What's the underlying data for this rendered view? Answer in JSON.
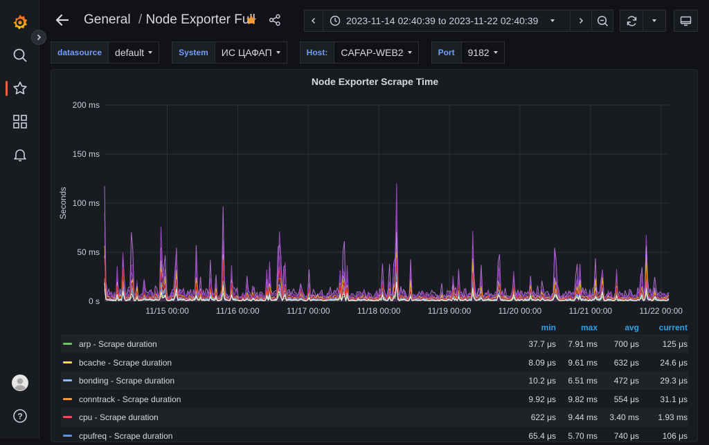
{
  "breadcrumb": {
    "folder": "General",
    "separator": "/",
    "dashboard": "Node Exporter Full"
  },
  "time_range": {
    "label": "2023-11-14 02:40:39 to 2023-11-22 02:40:39"
  },
  "icons": {
    "logo": "grafana-logo-icon",
    "search": "search-icon",
    "starred": "star-icon",
    "dashboards": "apps-icon",
    "alerts": "bell-icon",
    "profile": "user-avatar-icon",
    "help": "help-icon"
  },
  "variables": [
    {
      "label": "datasource",
      "value": "default"
    },
    {
      "label": "System",
      "value": "ИС ЦАФАП"
    },
    {
      "label": "Host:",
      "value": "CAFAP-WEB2"
    },
    {
      "label": "Port",
      "value": "9182"
    }
  ],
  "panel": {
    "title": "Node Exporter Scrape Time"
  },
  "colors": {
    "accent": "#33a2e5",
    "brand": "#f55f3e",
    "star": "#ff9830"
  },
  "chart_data": {
    "type": "line",
    "title": "Node Exporter Scrape Time",
    "ylabel": "Seconds",
    "xlabel": "",
    "ylim": [
      0,
      200
    ],
    "y_ticks": [
      "0 s",
      "50 ms",
      "100 ms",
      "150 ms",
      "200 ms"
    ],
    "x_ticks": [
      "11/15 00:00",
      "11/16 00:00",
      "11/17 00:00",
      "11/18 00:00",
      "11/19 00:00",
      "11/20 00:00",
      "11/21 00:00",
      "11/22 00:00"
    ],
    "x_range": [
      "2023-11-14 02:40",
      "2023-11-22 02:40"
    ],
    "peaks_ms": [
      {
        "x": "2023-11-14 02:40",
        "y": 118
      },
      {
        "x": "2023-11-14 09:00",
        "y": 95
      },
      {
        "x": "2023-11-14 12:00",
        "y": 100
      },
      {
        "x": "2023-11-14 22:00",
        "y": 105
      },
      {
        "x": "2023-11-15 03:00",
        "y": 97
      },
      {
        "x": "2023-11-15 19:00",
        "y": 108
      },
      {
        "x": "2023-11-16 14:00",
        "y": 113
      },
      {
        "x": "2023-11-17 12:00",
        "y": 100
      },
      {
        "x": "2023-11-18 06:00",
        "y": 160
      },
      {
        "x": "2023-11-19 08:00",
        "y": 110
      },
      {
        "x": "2023-11-20 12:00",
        "y": 87
      },
      {
        "x": "2023-11-21 04:00",
        "y": 71
      },
      {
        "x": "2023-11-21 19:00",
        "y": 109
      }
    ],
    "series": [
      {
        "name": "arp - Scrape duration",
        "color": "#73bf69",
        "min": "37.7 μs",
        "max": "7.91 ms",
        "avg": "700 μs",
        "current": "125 μs"
      },
      {
        "name": "bcache - Scrape duration",
        "color": "#fade2a",
        "min": "8.09 μs",
        "max": "9.61 ms",
        "avg": "632 μs",
        "current": "24.6 μs"
      },
      {
        "name": "bonding - Scrape duration",
        "color": "#8ab8ff",
        "min": "10.2 μs",
        "max": "6.51 ms",
        "avg": "472 μs",
        "current": "29.3 μs"
      },
      {
        "name": "conntrack - Scrape duration",
        "color": "#ff9830",
        "min": "9.92 μs",
        "max": "9.82 ms",
        "avg": "554 μs",
        "current": "31.1 μs"
      },
      {
        "name": "cpu - Scrape duration",
        "color": "#f2495c",
        "min": "622 μs",
        "max": "9.44 ms",
        "avg": "3.40 ms",
        "current": "1.93 ms"
      },
      {
        "name": "cpufreq - Scrape duration",
        "color": "#5794f2",
        "min": "65.4 μs",
        "max": "5.70 ms",
        "avg": "740 μs",
        "current": "106 μs"
      }
    ],
    "legend_columns": [
      "min",
      "max",
      "avg",
      "current"
    ],
    "grid": true
  }
}
